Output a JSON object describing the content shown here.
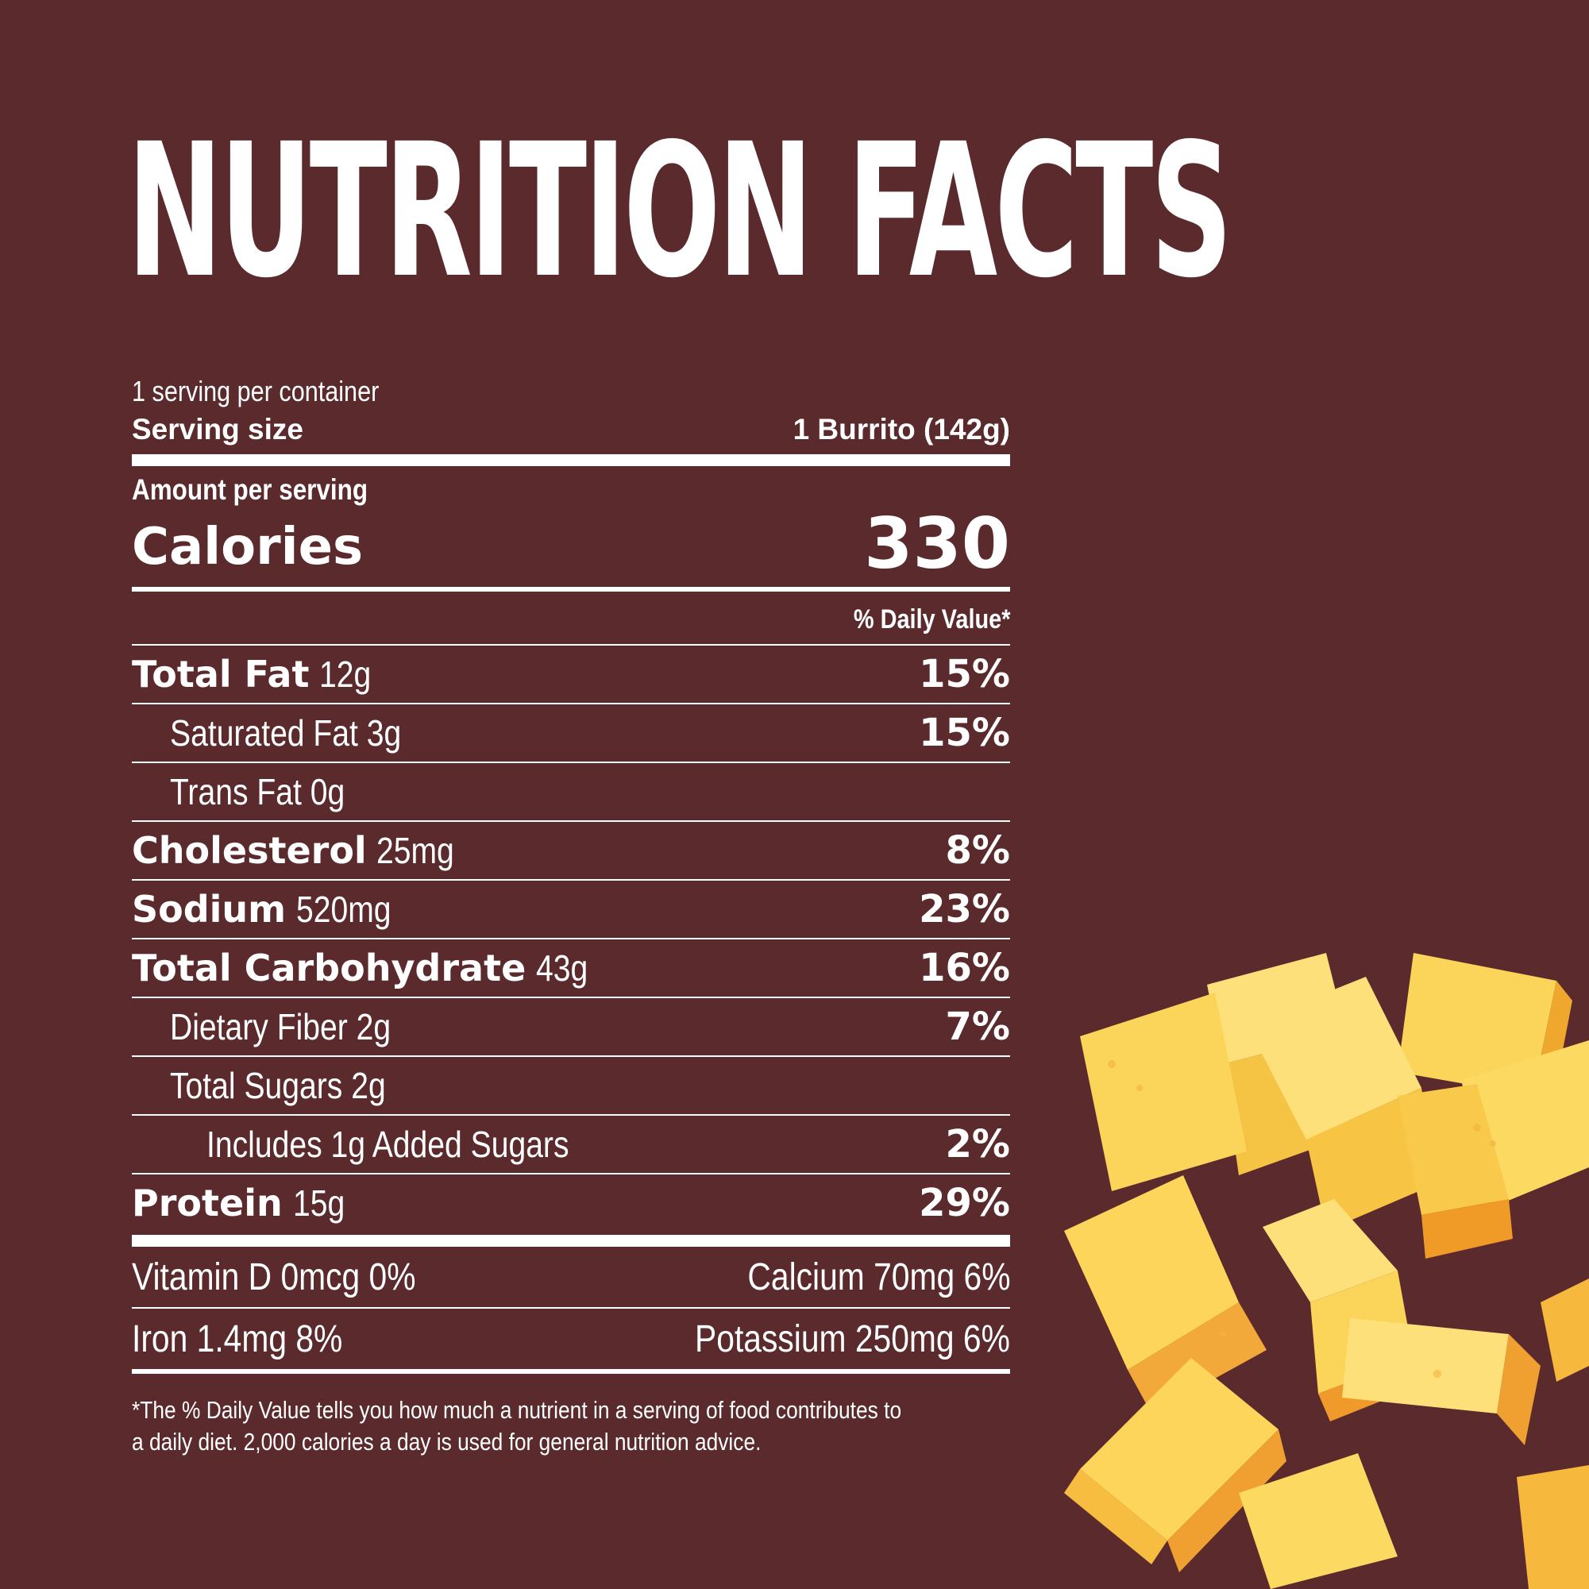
{
  "header": {
    "title": "NUTRITION FACTS"
  },
  "servings": {
    "per_container": "1 serving per container",
    "size_label": "Serving size",
    "size_value": "1 Burrito (142g)"
  },
  "calories": {
    "amount_label": "Amount per serving",
    "label": "Calories",
    "value": "330"
  },
  "daily_value_header": "% Daily Value*",
  "nutrients": [
    {
      "name": "Total Fat",
      "amount": "12g",
      "dv": "15%"
    },
    {
      "name": "Saturated Fat 3g",
      "dv": "15%"
    },
    {
      "name": "Trans Fat 0g",
      "dv": ""
    },
    {
      "name": "Cholesterol",
      "amount": "25mg",
      "dv": "8%"
    },
    {
      "name": "Sodium",
      "amount": "520mg",
      "dv": "23%"
    },
    {
      "name": "Total Carbohydrate",
      "amount": "43g",
      "dv": "16%"
    },
    {
      "name": "Dietary Fiber 2g",
      "dv": "7%"
    },
    {
      "name": "Total Sugars 2g",
      "dv": ""
    },
    {
      "name": "Includes 1g Added Sugars",
      "dv": "2%"
    },
    {
      "name": "Protein",
      "amount": "15g",
      "dv": "29%"
    }
  ],
  "vitamins": [
    {
      "left": "Vitamin D 0mcg 0%",
      "right": "Calcium 70mg 6%"
    },
    {
      "left": "Iron 1.4mg 8%",
      "right": "Potassium 250mg 6%"
    }
  ],
  "footnote": {
    "line1": "*The % Daily Value tells you how much a nutrient in a serving of food contributes to",
    "line2": "a daily diet. 2,000 calories a day is used for general nutrition advice."
  },
  "colors": {
    "background": "#5a2a2d",
    "text": "#ffffff",
    "cheese": "#f7c64a"
  }
}
